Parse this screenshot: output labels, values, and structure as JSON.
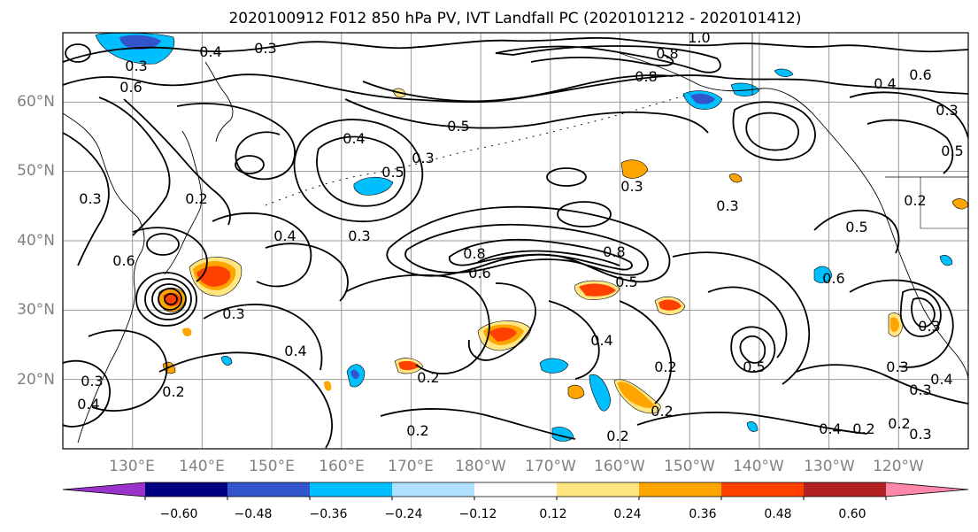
{
  "title": "2020100912 F012 850 hPa PV, IVT Landfall PC (2020101212 - 2020101412)",
  "map": {
    "lon_labels": [
      "130°E",
      "140°E",
      "150°E",
      "160°E",
      "170°E",
      "180°W",
      "170°W",
      "160°W",
      "150°W",
      "140°W",
      "130°W",
      "120°W"
    ],
    "lat_labels": [
      "60°N",
      "50°N",
      "40°N",
      "30°N",
      "20°N"
    ],
    "extent": {
      "lon_min": 120,
      "lon_max": 250,
      "lat_min": 10,
      "lat_max": 70
    },
    "grid": true,
    "contour_labels": [
      "0.3",
      "0.4",
      "1.0",
      "0.8",
      "0.6",
      "0.8",
      "0.4",
      "0.6",
      "0.5",
      "0.4",
      "0.3",
      "0.5",
      "0.3",
      "0.3",
      "0.2",
      "0.3",
      "0.5",
      "0.4",
      "0.3",
      "0.8",
      "0.6",
      "0.8",
      "0.5",
      "0.3",
      "0.3",
      "0.4",
      "0.4",
      "0.2",
      "0.2",
      "0.2",
      "0.4",
      "0.2",
      "0.2",
      "0.5",
      "0.3",
      "0.3",
      "0.4",
      "0.2",
      "0.3",
      "0.6",
      "0.2",
      "0.3",
      "0.4",
      "0.6",
      "0.5",
      "0.3",
      "0.2",
      "0.2",
      "0.3"
    ]
  },
  "colorbar": {
    "colors": [
      "#9933cc",
      "#000080",
      "#3355cc",
      "#00bfff",
      "#b0e0ff",
      "#ffffff",
      "#ffe680",
      "#ffa500",
      "#ff4000",
      "#b22222",
      "#ff88aa"
    ],
    "tick_labels": [
      "−0.60",
      "−0.48",
      "−0.36",
      "−0.24",
      "−0.12",
      "0.12",
      "0.24",
      "0.36",
      "0.48",
      "0.60"
    ],
    "tick_values": [
      -0.6,
      -0.48,
      -0.36,
      -0.24,
      -0.12,
      0.12,
      0.24,
      0.36,
      0.48,
      0.6
    ],
    "extend": "both"
  }
}
